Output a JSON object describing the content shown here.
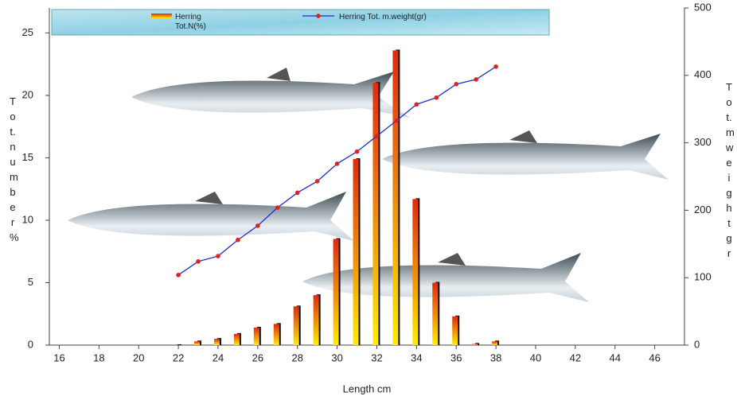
{
  "chart_data": {
    "type": "bar-line",
    "x_label": "Length cm",
    "y_label": "Tot.number %",
    "y2_label": "Tot.mweight gr",
    "x": [
      22,
      23,
      24,
      25,
      26,
      27,
      28,
      29,
      30,
      31,
      32,
      33,
      34,
      35,
      36,
      37,
      38
    ],
    "series": [
      {
        "name": "Herring Tot.N(%)",
        "type": "bar",
        "color": "#e02a10",
        "values": [
          0,
          0.3,
          0.5,
          0.9,
          1.4,
          1.7,
          3.1,
          4.0,
          8.5,
          14.9,
          21.0,
          23.6,
          11.7,
          5.0,
          2.3,
          0.1,
          0.3
        ]
      },
      {
        "name": "Herring Tot. m.weight(gr)",
        "type": "line",
        "axis": "y2",
        "color": "#1a2fd0",
        "marker_color": "#e02020",
        "values": [
          104,
          124,
          132,
          156,
          177,
          204,
          226,
          243,
          269,
          287,
          310,
          333,
          357,
          367,
          387,
          394,
          413
        ]
      }
    ],
    "xlim": [
      15.5,
      47.5
    ],
    "xticks": [
      16,
      18,
      20,
      22,
      24,
      26,
      28,
      30,
      32,
      34,
      36,
      38,
      40,
      42,
      44,
      46
    ],
    "ylim": [
      0,
      27
    ],
    "yticks": [
      0,
      5,
      10,
      15,
      20,
      25
    ],
    "y2lim": [
      0,
      500
    ],
    "y2ticks": [
      0,
      100,
      200,
      300,
      400,
      500
    ]
  }
}
